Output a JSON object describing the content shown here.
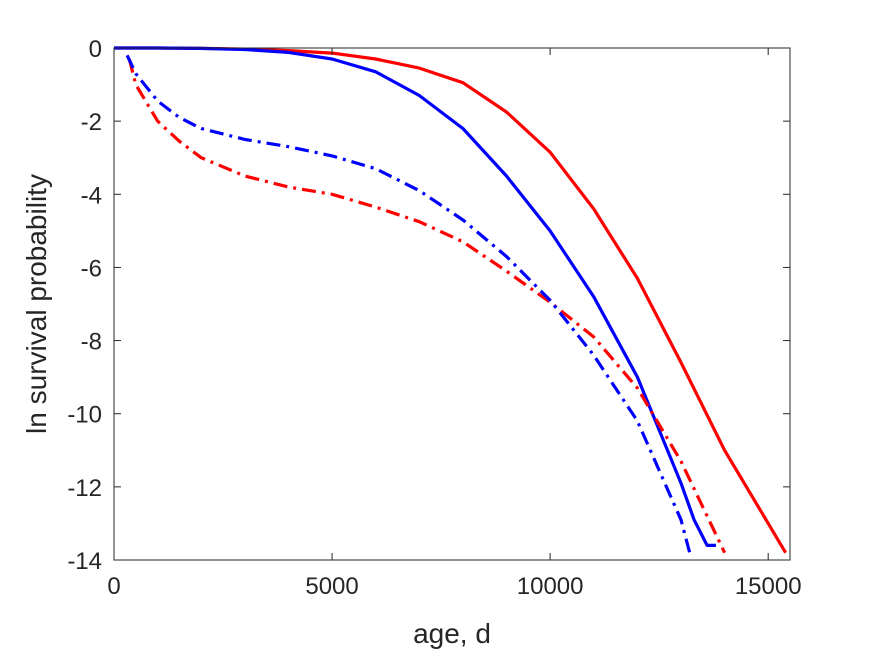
{
  "chart_data": {
    "type": "line",
    "title": "",
    "xlabel": "age, d",
    "ylabel": "ln survival probability",
    "xlim": [
      0,
      15500
    ],
    "ylim": [
      -14,
      0
    ],
    "xticks": [
      0,
      5000,
      10000,
      15000
    ],
    "yticks": [
      0,
      -2,
      -4,
      -6,
      -8,
      -10,
      -12,
      -14
    ],
    "grid": false,
    "series": [
      {
        "color": "#ff0000",
        "style": "solid",
        "x": [
          0,
          1000,
          2000,
          3000,
          4000,
          5000,
          6000,
          7000,
          8000,
          9000,
          10000,
          11000,
          12000,
          13000,
          14000,
          15000,
          15400
        ],
        "y": [
          0,
          0,
          -0.01,
          -0.03,
          -0.07,
          -0.14,
          -0.3,
          -0.55,
          -0.95,
          -1.75,
          -2.85,
          -4.4,
          -6.3,
          -8.6,
          -11.0,
          -13.0,
          -13.8
        ]
      },
      {
        "color": "#0000ff",
        "style": "solid",
        "x": [
          0,
          1000,
          2000,
          3000,
          4000,
          5000,
          6000,
          7000,
          8000,
          9000,
          10000,
          11000,
          12000,
          13000,
          13300,
          13600,
          13800
        ],
        "y": [
          0,
          0,
          -0.01,
          -0.04,
          -0.12,
          -0.3,
          -0.65,
          -1.3,
          -2.2,
          -3.5,
          -5.0,
          -6.8,
          -9.0,
          -11.9,
          -12.9,
          -13.6,
          -13.6
        ]
      },
      {
        "color": "#ff0000",
        "style": "dashdot",
        "x": [
          350,
          500,
          1000,
          1500,
          2000,
          3000,
          4000,
          5000,
          6000,
          7000,
          8000,
          9000,
          10000,
          11000,
          12000,
          13000,
          14000
        ],
        "y": [
          -0.3,
          -1.0,
          -2.0,
          -2.55,
          -3.0,
          -3.5,
          -3.8,
          -4.0,
          -4.35,
          -4.75,
          -5.3,
          -6.1,
          -6.95,
          -7.9,
          -9.3,
          -11.3,
          -13.8
        ]
      },
      {
        "color": "#0000ff",
        "style": "dashdot",
        "x": [
          300,
          500,
          1000,
          1500,
          2000,
          3000,
          4000,
          5000,
          6000,
          7000,
          8000,
          9000,
          10000,
          11000,
          12000,
          13000,
          13200
        ],
        "y": [
          -0.2,
          -0.7,
          -1.45,
          -1.9,
          -2.2,
          -2.5,
          -2.7,
          -2.95,
          -3.3,
          -3.9,
          -4.7,
          -5.7,
          -6.9,
          -8.4,
          -10.2,
          -12.9,
          -13.8
        ]
      }
    ]
  }
}
